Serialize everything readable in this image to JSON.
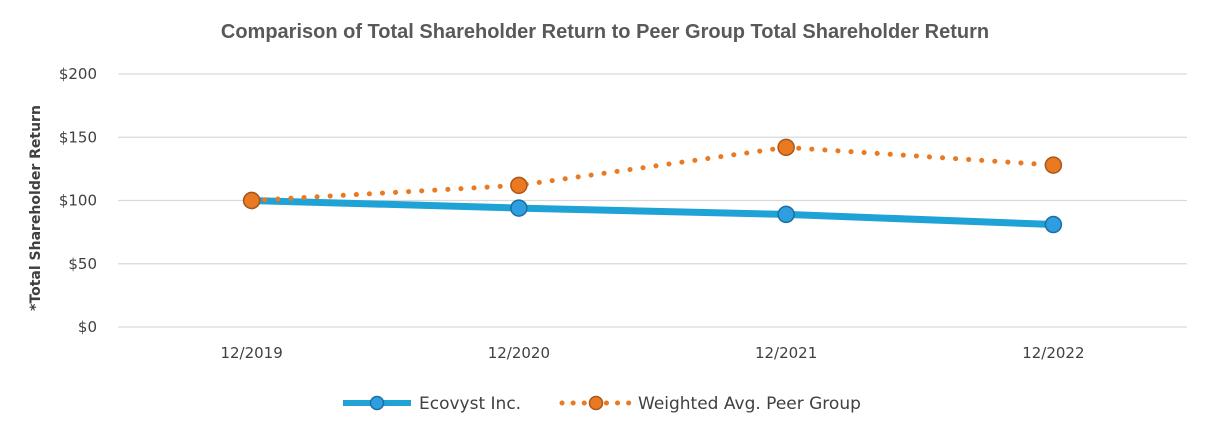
{
  "chart_data": {
    "type": "line",
    "title": "Comparison of Total Shareholder Return to Peer Group Total Shareholder Return",
    "xlabel": "",
    "ylabel": "*Total Shareholder Return",
    "categories": [
      "12/2019",
      "12/2020",
      "12/2021",
      "12/2022"
    ],
    "ylim": [
      0,
      200
    ],
    "yticks": [
      0,
      50,
      100,
      150,
      200
    ],
    "ytick_labels": [
      "$0",
      "$50",
      "$100",
      "$150",
      "$200"
    ],
    "grid": true,
    "legend_position": "bottom-center",
    "series": [
      {
        "name": "Ecovyst Inc.",
        "values": [
          100,
          94,
          89,
          81
        ],
        "color": "#1fa2d6",
        "marker_color": "#2e9ee0",
        "style": "solid"
      },
      {
        "name": "Weighted Avg. Peer Group",
        "values": [
          100,
          112,
          142,
          128
        ],
        "color": "#ea7a22",
        "marker_color": "#ea7a22",
        "style": "dotted"
      }
    ]
  }
}
